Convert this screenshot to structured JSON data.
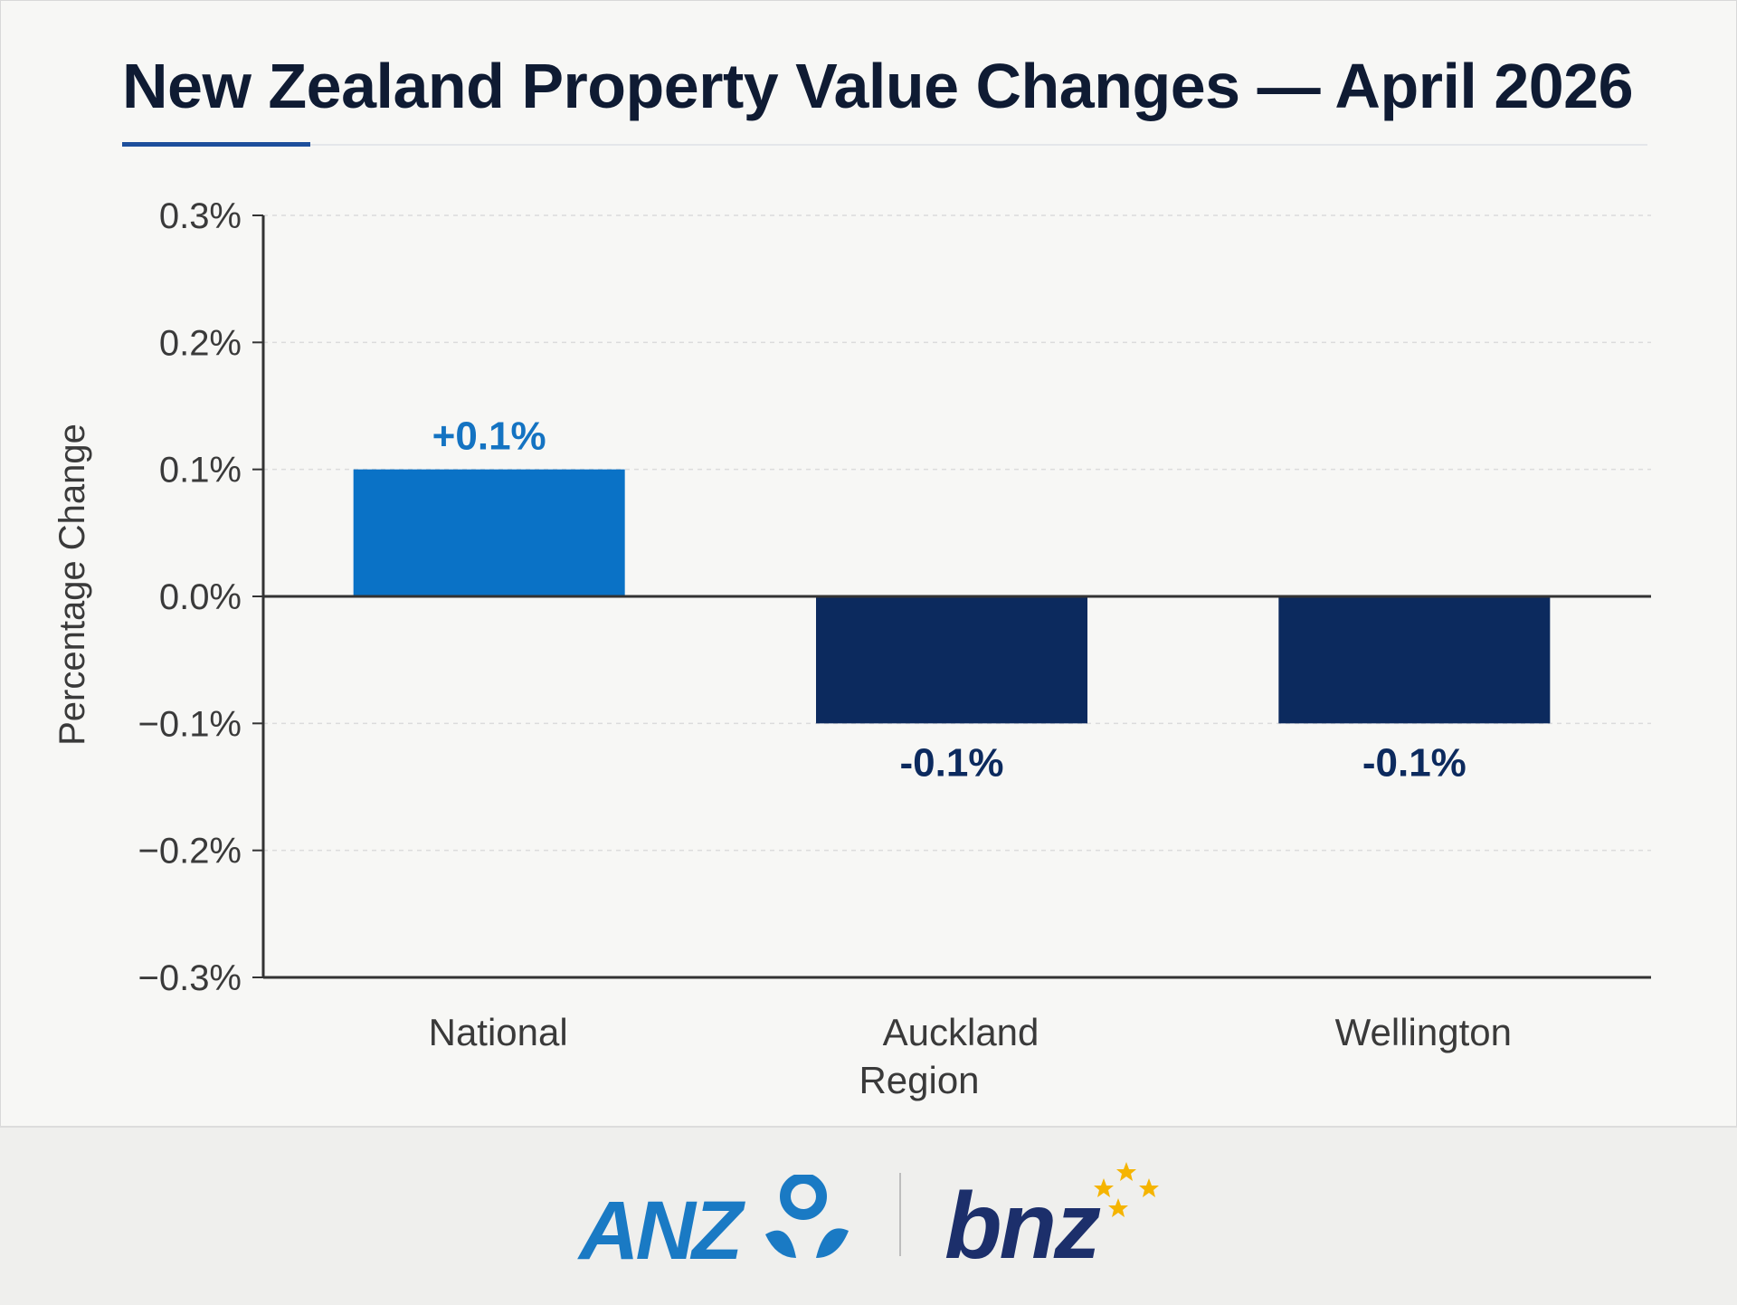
{
  "title": "New Zealand Property Value Changes — April 2026",
  "chart_data": {
    "type": "bar",
    "title": "New Zealand Property Value Changes — April 2026",
    "xlabel": "Region",
    "ylabel": "Percentage Change",
    "categories": [
      "National",
      "Auckland",
      "Wellington"
    ],
    "values": [
      0.1,
      -0.1,
      -0.1
    ],
    "data_labels": [
      "+0.1%",
      "-0.1%",
      "-0.1%"
    ],
    "bar_colors": [
      "#0a72c6",
      "#0c2a5e",
      "#0c2a5e"
    ],
    "label_colors": [
      "#1473c2",
      "#0c2a5e",
      "#0c2a5e"
    ],
    "ylim": [
      -0.3,
      0.3
    ],
    "yticks": [
      0.3,
      0.2,
      0.1,
      0.0,
      -0.1,
      -0.2,
      -0.3
    ],
    "ytick_labels": [
      "0.3%",
      "0.2%",
      "0.1%",
      "0.0%",
      "−0.1%",
      "−0.2%",
      "−0.3%"
    ],
    "grid": "horizontal dashed",
    "legend": "none"
  },
  "footer": {
    "anz_logo_text": "ANZ",
    "bnz_logo_text": "bnz"
  },
  "colors": {
    "title": "#0f1b33",
    "accent": "#1d4f9c",
    "axis": "#333333",
    "anz_blue": "#1a7ac4",
    "bnz_navy": "#1c2f6b",
    "bnz_star": "#f5b400"
  },
  "icons": {
    "anz_mark": "anz-person-icon",
    "bnz_stars": "bnz-stars-icon"
  }
}
